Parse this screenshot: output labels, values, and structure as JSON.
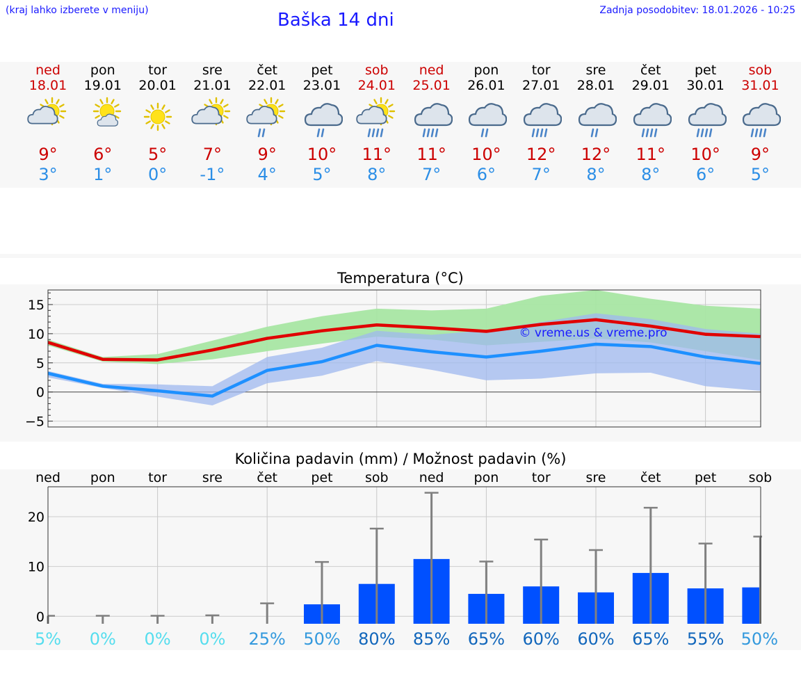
{
  "header": {
    "menu_hint": "(kraj lahko izberete v meniju)",
    "title": "Baška 14 dni",
    "updated": "Zadnja posodobitev: 18.01.2026 - 10:25"
  },
  "days": [
    {
      "name": "ned",
      "date": "18.01",
      "weekend": true,
      "icon": "sun-cloud-icon",
      "max": "9°",
      "min": "3°"
    },
    {
      "name": "pon",
      "date": "19.01",
      "weekend": false,
      "icon": "sun-small-cloud-icon",
      "max": "6°",
      "min": "1°"
    },
    {
      "name": "tor",
      "date": "20.01",
      "weekend": false,
      "icon": "sun-icon",
      "max": "5°",
      "min": "0°"
    },
    {
      "name": "sre",
      "date": "21.01",
      "weekend": false,
      "icon": "sun-cloud-icon",
      "max": "7°",
      "min": "-1°"
    },
    {
      "name": "čet",
      "date": "22.01",
      "weekend": false,
      "icon": "sun-cloud-rain-icon",
      "max": "9°",
      "min": "4°"
    },
    {
      "name": "pet",
      "date": "23.01",
      "weekend": false,
      "icon": "cloud-rain-icon",
      "max": "10°",
      "min": "5°"
    },
    {
      "name": "sob",
      "date": "24.01",
      "weekend": true,
      "icon": "sun-cloud-heavy-rain-icon",
      "max": "11°",
      "min": "8°"
    },
    {
      "name": "ned",
      "date": "25.01",
      "weekend": true,
      "icon": "cloud-heavy-rain-icon",
      "max": "11°",
      "min": "7°"
    },
    {
      "name": "pon",
      "date": "26.01",
      "weekend": false,
      "icon": "cloud-rain-icon",
      "max": "10°",
      "min": "6°"
    },
    {
      "name": "tor",
      "date": "27.01",
      "weekend": false,
      "icon": "cloud-heavy-rain-icon",
      "max": "12°",
      "min": "7°"
    },
    {
      "name": "sre",
      "date": "28.01",
      "weekend": false,
      "icon": "cloud-rain-icon",
      "max": "12°",
      "min": "8°"
    },
    {
      "name": "čet",
      "date": "29.01",
      "weekend": false,
      "icon": "cloud-heavy-rain-icon",
      "max": "11°",
      "min": "8°"
    },
    {
      "name": "pet",
      "date": "30.01",
      "weekend": false,
      "icon": "cloud-heavy-rain-icon",
      "max": "10°",
      "min": "6°"
    },
    {
      "name": "sob",
      "date": "31.01",
      "weekend": true,
      "icon": "cloud-heavy-rain-icon",
      "max": "9°",
      "min": "5°"
    }
  ],
  "colors": {
    "max_line": "#e00000",
    "min_line": "#1e90ff",
    "max_band": "#a8e6a3",
    "min_band": "#9fb8ef",
    "overlap_band": "#6ebfa8",
    "bar": "#0050ff",
    "error_bar": "#808080",
    "prob_low": "#55ddee",
    "prob_mid": "#3399dd",
    "prob_high": "#1166bb",
    "title_blue": "#1a1aff",
    "weekend_red": "#cc0000",
    "min_blue": "#2b8ee6"
  },
  "chart_data": [
    {
      "type": "line",
      "title": "Temperatura (°C)",
      "ylabel": "°C",
      "ylim": [
        -6,
        17.5
      ],
      "yticks": [
        "−5",
        "0",
        "5",
        "10",
        "15"
      ],
      "ytick_values": [
        -5,
        0,
        5,
        10,
        15
      ],
      "watermark": "© vreme.us & vreme.pro",
      "series": [
        {
          "name": "max",
          "values": [
            8.5,
            5.6,
            5.5,
            7.2,
            9.2,
            10.5,
            11.5,
            11.0,
            10.4,
            11.6,
            12.4,
            11.3,
            9.9,
            9.5
          ],
          "band_low": [
            8.0,
            5.2,
            4.8,
            5.6,
            7.0,
            8.3,
            9.5,
            9.0,
            8.0,
            8.6,
            9.2,
            8.5,
            7.0,
            5.5
          ],
          "band_high": [
            9.0,
            6.0,
            6.5,
            8.8,
            11.2,
            13.0,
            14.3,
            14.0,
            14.3,
            16.5,
            17.5,
            16.0,
            14.8,
            14.3
          ]
        },
        {
          "name": "min",
          "values": [
            3.2,
            1.0,
            0.2,
            -0.7,
            3.7,
            5.2,
            8.0,
            6.9,
            6.0,
            7.0,
            8.2,
            7.8,
            6.0,
            4.9
          ],
          "band_low": [
            2.5,
            0.7,
            -0.8,
            -2.3,
            1.5,
            2.8,
            5.3,
            3.8,
            2.0,
            2.3,
            3.2,
            3.3,
            1.0,
            0.2
          ],
          "band_high": [
            3.6,
            1.4,
            1.3,
            1.0,
            6.0,
            7.6,
            10.5,
            9.8,
            10.6,
            12.0,
            13.5,
            12.5,
            10.8,
            10.0
          ]
        }
      ]
    },
    {
      "type": "bar",
      "title": "Količina padavin (mm) / Možnost padavin (%)",
      "ylabel": "mm",
      "ylim": [
        -1.5,
        26
      ],
      "yticks": [
        "0",
        "10",
        "20"
      ],
      "ytick_values": [
        0,
        10,
        20
      ],
      "categories": [
        "ned",
        "pon",
        "tor",
        "sre",
        "čet",
        "pet",
        "sob",
        "ned",
        "pon",
        "tor",
        "sre",
        "čet",
        "pet",
        "sob"
      ],
      "values": [
        0,
        0,
        0,
        0,
        0,
        2.4,
        6.5,
        11.5,
        4.5,
        6.0,
        4.8,
        8.7,
        5.6,
        5.8
      ],
      "error_high": [
        0.1,
        0.1,
        0.1,
        0.2,
        2.6,
        10.9,
        17.6,
        24.8,
        11.0,
        15.4,
        13.3,
        21.8,
        14.6,
        16.0
      ],
      "probability": [
        "5%",
        "0%",
        "0%",
        "0%",
        "25%",
        "50%",
        "80%",
        "85%",
        "65%",
        "60%",
        "60%",
        "65%",
        "55%",
        "50%"
      ],
      "probability_values": [
        5,
        0,
        0,
        0,
        25,
        50,
        80,
        85,
        65,
        60,
        60,
        65,
        55,
        50
      ]
    }
  ]
}
